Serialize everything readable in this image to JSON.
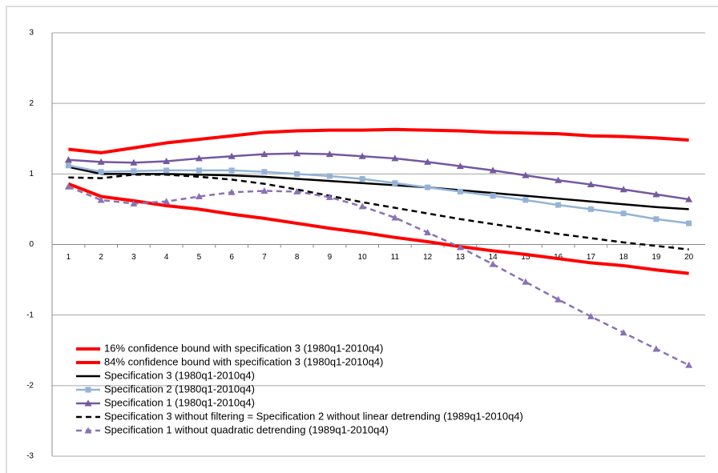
{
  "chart_data": {
    "type": "line",
    "categories": [
      1,
      2,
      3,
      4,
      5,
      6,
      7,
      8,
      9,
      10,
      11,
      12,
      13,
      14,
      15,
      16,
      17,
      18,
      19,
      20
    ],
    "ylim": [
      -3,
      3
    ],
    "yticks": [
      -3,
      -2,
      -1,
      0,
      1,
      2,
      3
    ],
    "grid": true,
    "legend": "bottom-left",
    "series": [
      {
        "name": "16% confidence bound with specification 3 (1980q1-2010q4)",
        "color": "#ff0000",
        "width": 4,
        "values": [
          0.86,
          0.68,
          0.62,
          0.55,
          0.5,
          0.43,
          0.37,
          0.3,
          0.23,
          0.17,
          0.1,
          0.04,
          -0.03,
          -0.09,
          -0.14,
          -0.2,
          -0.26,
          -0.3,
          -0.36,
          -0.41
        ]
      },
      {
        "name": "84% confidence bound with specification 3 (1980q1-2010q4)",
        "color": "#ff0000",
        "width": 4,
        "values": [
          1.35,
          1.3,
          1.37,
          1.44,
          1.49,
          1.54,
          1.59,
          1.61,
          1.62,
          1.62,
          1.63,
          1.62,
          1.61,
          1.59,
          1.58,
          1.57,
          1.54,
          1.53,
          1.51,
          1.48
        ]
      },
      {
        "name": "Specification 3 (1980q1-2010q4)",
        "color": "#000000",
        "width": 2.5,
        "values": [
          1.1,
          1.0,
          1.0,
          1.0,
          0.99,
          0.98,
          0.96,
          0.93,
          0.9,
          0.87,
          0.84,
          0.81,
          0.77,
          0.73,
          0.69,
          0.65,
          0.61,
          0.57,
          0.53,
          0.5
        ]
      },
      {
        "name": "Specification 2 (1980q1-2010q4)",
        "color": "#95b3d7",
        "width": 2.5,
        "marker": "square",
        "values": [
          1.12,
          1.03,
          1.04,
          1.05,
          1.05,
          1.05,
          1.03,
          1.0,
          0.97,
          0.93,
          0.87,
          0.81,
          0.75,
          0.69,
          0.63,
          0.56,
          0.5,
          0.44,
          0.36,
          0.3
        ]
      },
      {
        "name": "Specification 1 (1980q1-2010q4)",
        "color": "#7359a0",
        "width": 2.5,
        "marker": "triangle",
        "values": [
          1.2,
          1.17,
          1.16,
          1.18,
          1.22,
          1.25,
          1.28,
          1.29,
          1.28,
          1.25,
          1.22,
          1.17,
          1.11,
          1.05,
          0.98,
          0.91,
          0.85,
          0.78,
          0.71,
          0.64
        ]
      },
      {
        "name": "Specification 3 without filtering = Specification 2 without linear detrending (1989q1-2010q4)",
        "color": "#000000",
        "width": 2.5,
        "dash": true,
        "values": [
          0.95,
          0.94,
          0.99,
          0.99,
          0.96,
          0.92,
          0.86,
          0.78,
          0.69,
          0.6,
          0.52,
          0.44,
          0.36,
          0.29,
          0.22,
          0.15,
          0.09,
          0.03,
          -0.02,
          -0.07
        ]
      },
      {
        "name": "Specification 1 without quadratic detrending (1989q1-2010q4)",
        "color": "#8a72b4",
        "width": 2.5,
        "dash": true,
        "marker": "triangle",
        "values": [
          0.82,
          0.63,
          0.58,
          0.61,
          0.68,
          0.74,
          0.76,
          0.75,
          0.67,
          0.54,
          0.38,
          0.17,
          -0.04,
          -0.28,
          -0.53,
          -0.78,
          -1.02,
          -1.25,
          -1.48,
          -1.71
        ]
      }
    ]
  }
}
